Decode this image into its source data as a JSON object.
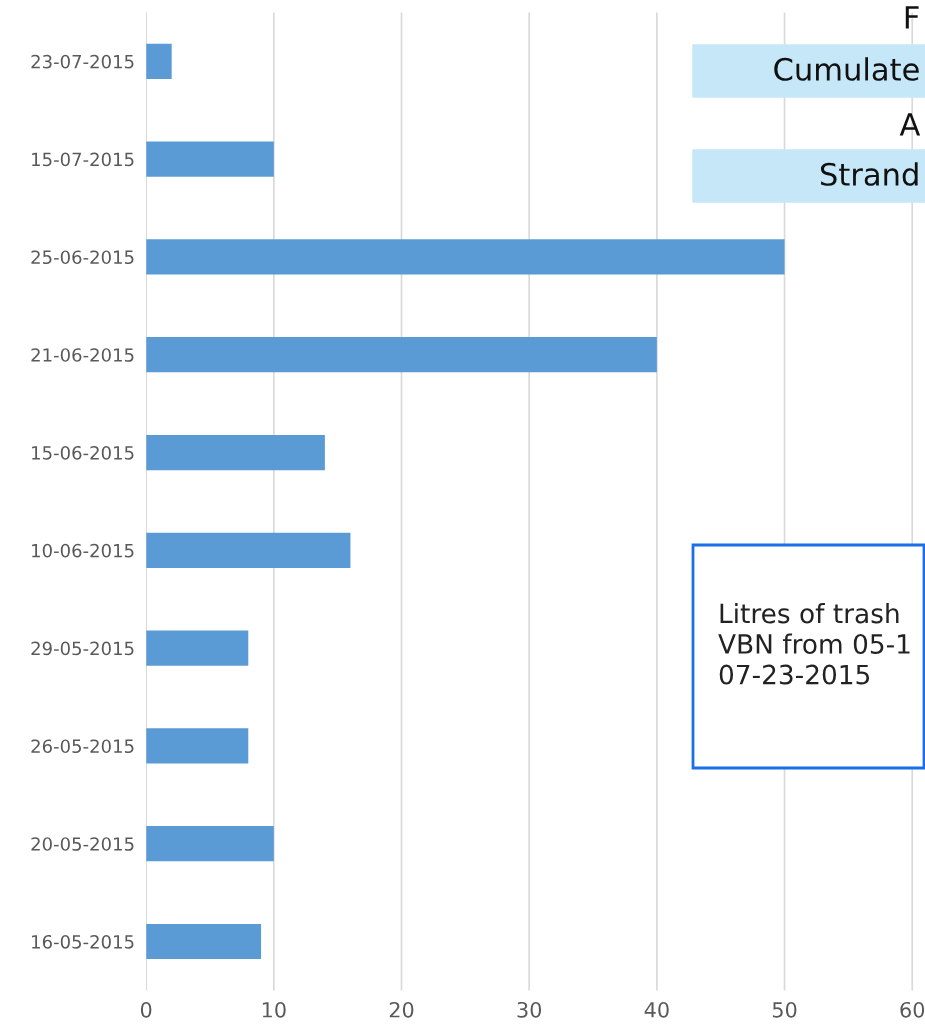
{
  "chart_data": {
    "type": "bar",
    "orientation": "horizontal",
    "categories": [
      "23-07-2015",
      "15-07-2015",
      "25-06-2015",
      "21-06-2015",
      "15-06-2015",
      "10-06-2015",
      "29-05-2015",
      "26-05-2015",
      "20-05-2015",
      "16-05-2015"
    ],
    "values": [
      2,
      10,
      50,
      40,
      14,
      16,
      8,
      8,
      10,
      9
    ],
    "color": "#5b9bd5",
    "xlim": [
      0,
      61
    ],
    "xticks": [
      0,
      10,
      20,
      30,
      40,
      50,
      60
    ],
    "grid": "x",
    "annotations": [
      "F",
      "Cumulate",
      "A",
      "Strand",
      "Litres of trash\nVBN from 05-1\n07-23-2015"
    ]
  }
}
